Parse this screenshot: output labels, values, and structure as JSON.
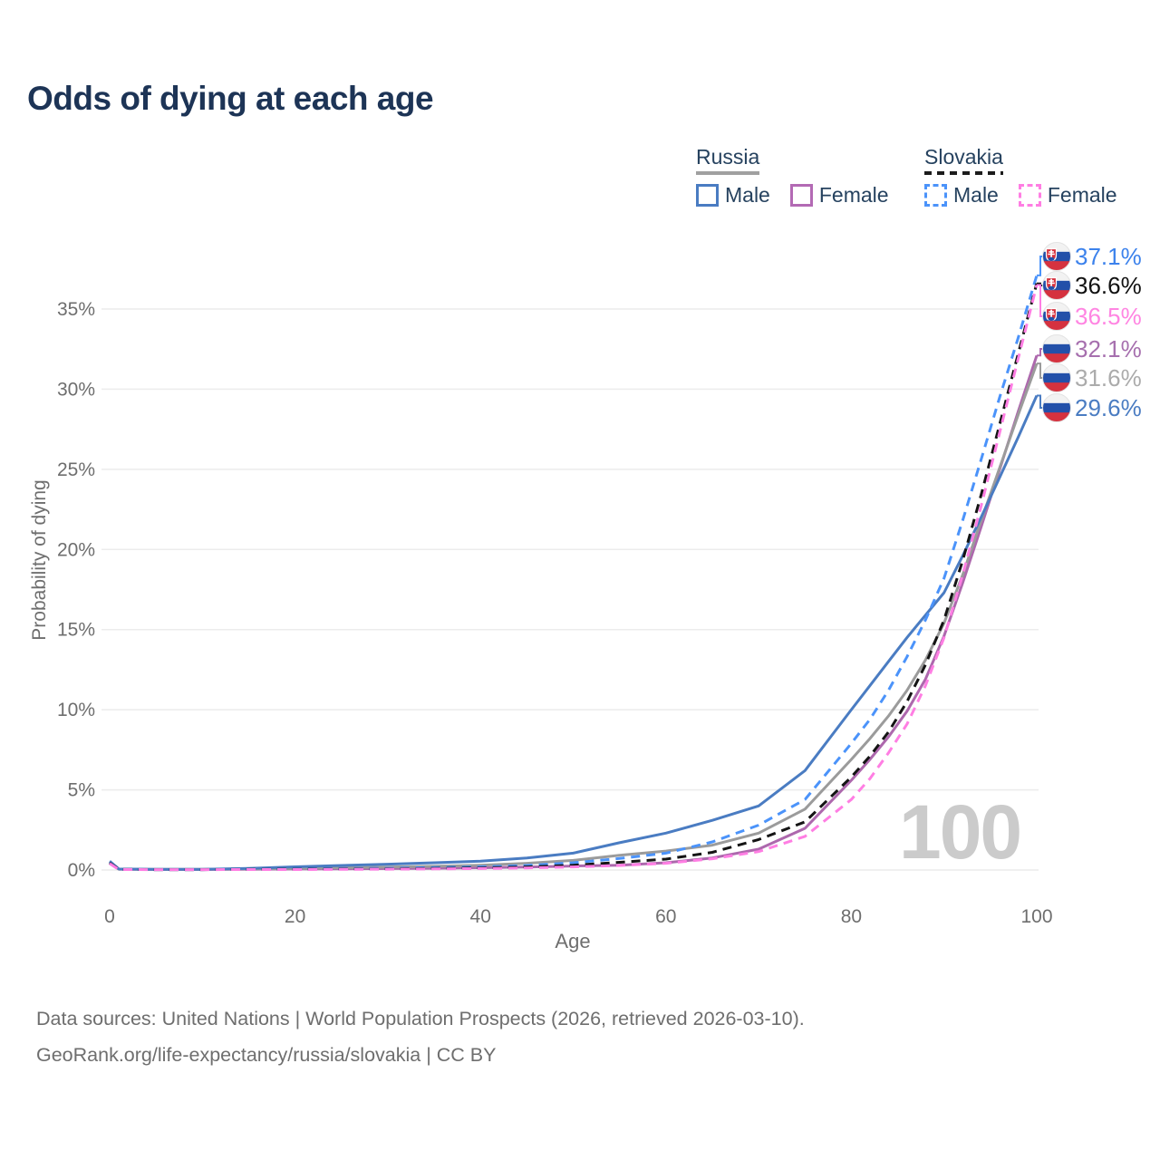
{
  "title": "Odds of dying at each age",
  "watermark": "100",
  "legend": {
    "groups": [
      {
        "label": "Russia",
        "line_style": "solid",
        "line_color": "#a0a0a0",
        "items": [
          {
            "label": "Male",
            "color": "#4a7cc2",
            "dashed": false
          },
          {
            "label": "Female",
            "color": "#b36ab4",
            "dashed": false
          }
        ]
      },
      {
        "label": "Slovakia",
        "line_style": "dashed",
        "line_color": "#1c1c1c",
        "items": [
          {
            "label": "Male",
            "color": "#4b93fa",
            "dashed": true
          },
          {
            "label": "Female",
            "color": "#ff7ee3",
            "dashed": true
          }
        ]
      }
    ]
  },
  "chart_data": {
    "type": "line",
    "title": "Odds of dying at each age",
    "xlabel": "Age",
    "ylabel": "Probability of dying",
    "xlim": [
      0,
      100
    ],
    "ylim": [
      0,
      38.5
    ],
    "grid": "horizontal",
    "xticks": [
      "0",
      "20",
      "40",
      "60",
      "80",
      "100"
    ],
    "yticks": [
      "0%",
      "5%",
      "10%",
      "15%",
      "20%",
      "25%",
      "30%",
      "35%"
    ],
    "x": [
      0,
      1,
      5,
      10,
      15,
      20,
      25,
      30,
      35,
      40,
      45,
      50,
      55,
      60,
      65,
      70,
      75,
      80,
      82,
      84,
      86,
      88,
      90,
      92,
      94,
      96,
      98,
      100
    ],
    "series": [
      {
        "id": "slovakia-male",
        "name": "Slovakia Male",
        "country": "Slovakia",
        "sex": "Male",
        "flag": "sk",
        "color": "#4b93fa",
        "dashed": true,
        "end_label": "37.1%",
        "end_value": 37.1,
        "label_color": "#3c82ec",
        "values": [
          0.45,
          0.04,
          0.02,
          0.02,
          0.05,
          0.08,
          0.09,
          0.11,
          0.15,
          0.2,
          0.28,
          0.45,
          0.72,
          1.05,
          1.75,
          2.8,
          4.4,
          7.9,
          9.4,
          11.2,
          13.3,
          15.6,
          18.2,
          21.8,
          25.6,
          29.5,
          33.2,
          37.1
        ]
      },
      {
        "id": "slovakia-total",
        "name": "Slovakia",
        "country": "Slovakia",
        "sex": "All",
        "flag": "sk",
        "color": "#141414",
        "dashed": true,
        "end_label": "36.6%",
        "end_value": 36.6,
        "label_color": "#111111",
        "values": [
          0.44,
          0.04,
          0.02,
          0.02,
          0.04,
          0.05,
          0.06,
          0.07,
          0.1,
          0.13,
          0.19,
          0.3,
          0.48,
          0.68,
          1.1,
          1.9,
          3.0,
          5.8,
          7.1,
          8.6,
          10.5,
          12.8,
          15.6,
          19.3,
          23.4,
          27.8,
          32.2,
          36.6
        ]
      },
      {
        "id": "slovakia-female",
        "name": "Slovakia Female",
        "country": "Slovakia",
        "sex": "Female",
        "flag": "sk",
        "color": "#ff7ee3",
        "dashed": true,
        "end_label": "36.5%",
        "end_value": 36.5,
        "label_color": "#ff85e2",
        "values": [
          0.4,
          0.03,
          0.02,
          0.02,
          0.03,
          0.03,
          0.04,
          0.05,
          0.07,
          0.09,
          0.13,
          0.19,
          0.28,
          0.42,
          0.7,
          1.15,
          2.1,
          4.4,
          5.7,
          7.3,
          9.1,
          11.5,
          14.5,
          18.4,
          22.7,
          27.3,
          31.9,
          36.5
        ]
      },
      {
        "id": "russia-female",
        "name": "Russia Female",
        "country": "Russia",
        "sex": "Female",
        "flag": "ru",
        "color": "#ad68ad",
        "dashed": false,
        "end_label": "32.1%",
        "end_value": 32.1,
        "label_color": "#a66fae",
        "values": [
          0.42,
          0.05,
          0.03,
          0.03,
          0.05,
          0.06,
          0.07,
          0.09,
          0.11,
          0.14,
          0.18,
          0.25,
          0.3,
          0.45,
          0.75,
          1.3,
          2.6,
          5.6,
          6.9,
          8.3,
          9.9,
          11.9,
          14.6,
          17.9,
          21.4,
          25.0,
          28.6,
          32.1
        ]
      },
      {
        "id": "russia-total",
        "name": "Russia",
        "country": "Russia",
        "sex": "All",
        "flag": "ru",
        "color": "#9b9b9b",
        "dashed": false,
        "end_label": "31.6%",
        "end_value": 31.6,
        "label_color": "#ababab",
        "values": [
          0.49,
          0.05,
          0.04,
          0.04,
          0.08,
          0.1,
          0.14,
          0.18,
          0.23,
          0.3,
          0.42,
          0.6,
          0.92,
          1.18,
          1.55,
          2.3,
          3.8,
          6.9,
          8.2,
          9.6,
          11.2,
          13.1,
          15.4,
          18.4,
          21.8,
          25.1,
          28.4,
          31.6
        ]
      },
      {
        "id": "russia-male",
        "name": "Russia Male",
        "country": "Russia",
        "sex": "Male",
        "flag": "ru",
        "color": "#4a7cc2",
        "dashed": false,
        "end_label": "29.6%",
        "end_value": 29.6,
        "label_color": "#4a7cc2",
        "values": [
          0.55,
          0.06,
          0.04,
          0.04,
          0.1,
          0.2,
          0.28,
          0.36,
          0.45,
          0.55,
          0.75,
          1.05,
          1.7,
          2.3,
          3.1,
          4.0,
          6.2,
          10.0,
          11.5,
          13.0,
          14.5,
          15.9,
          17.3,
          19.6,
          22.0,
          24.5,
          27.0,
          29.6
        ]
      }
    ]
  },
  "footer": {
    "line1": "Data sources: United Nations | World Population Prospects (2026, retrieved 2026-03-10).",
    "line2": "GeoRank.org/life-expectancy/russia/slovakia | CC BY"
  }
}
